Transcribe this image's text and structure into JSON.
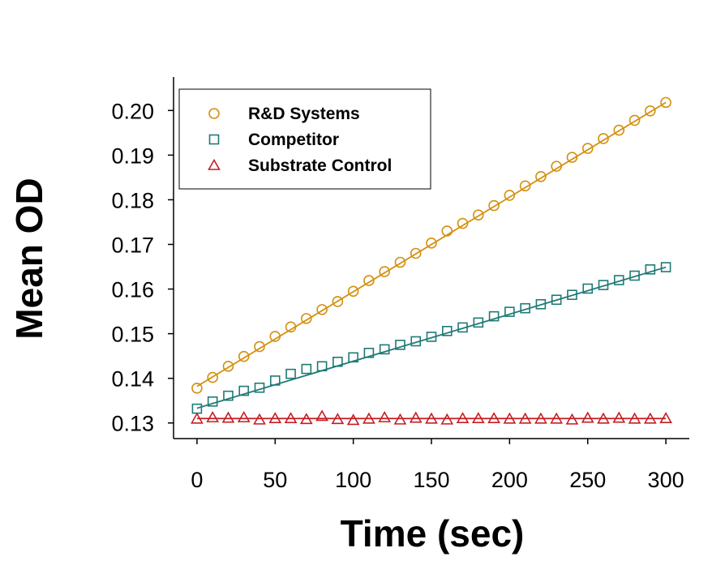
{
  "chart_data": {
    "type": "scatter",
    "xlabel": "Time (sec)",
    "ylabel": "Mean OD",
    "xlim": [
      -15,
      315
    ],
    "ylim": [
      0.1265,
      0.2075
    ],
    "x_ticks": [
      "0",
      "50",
      "100",
      "150",
      "200",
      "250",
      "300"
    ],
    "y_ticks": [
      "0.13",
      "0.14",
      "0.15",
      "0.16",
      "0.17",
      "0.18",
      "0.19",
      "0.20"
    ],
    "grid": false,
    "legend_position": "top-left",
    "x": [
      0,
      10,
      20,
      30,
      40,
      50,
      60,
      70,
      80,
      90,
      100,
      110,
      120,
      130,
      140,
      150,
      160,
      170,
      180,
      190,
      200,
      210,
      220,
      230,
      240,
      250,
      260,
      270,
      280,
      290,
      300
    ],
    "series": [
      {
        "name": "R&D Systems",
        "color": "#D4900F",
        "marker": "circle",
        "values": [
          0.1378,
          0.1402,
          0.1427,
          0.1449,
          0.1471,
          0.1494,
          0.1515,
          0.1534,
          0.1554,
          0.1572,
          0.1595,
          0.1619,
          0.1639,
          0.166,
          0.168,
          0.1703,
          0.173,
          0.1747,
          0.1766,
          0.1787,
          0.181,
          0.1831,
          0.1852,
          0.1875,
          0.1895,
          0.1915,
          0.1937,
          0.1956,
          0.1978,
          0.1999,
          0.2018
        ],
        "fit": [
          0.1382,
          0.2018
        ]
      },
      {
        "name": "Competitor",
        "color": "#1F7A76",
        "marker": "square",
        "values": [
          0.1332,
          0.1348,
          0.1361,
          0.1372,
          0.1379,
          0.1395,
          0.141,
          0.1421,
          0.1427,
          0.1437,
          0.1447,
          0.1457,
          0.1465,
          0.1475,
          0.1483,
          0.1493,
          0.1506,
          0.1514,
          0.1525,
          0.1539,
          0.1549,
          0.1557,
          0.1566,
          0.1576,
          0.1587,
          0.1601,
          0.1609,
          0.162,
          0.163,
          0.1644,
          0.1649
        ],
        "fit": [
          0.1333,
          0.1649
        ]
      },
      {
        "name": "Substrate Control",
        "color": "#C41E24",
        "marker": "triangle",
        "values": [
          0.1309,
          0.1312,
          0.1311,
          0.1312,
          0.1307,
          0.131,
          0.131,
          0.1308,
          0.1315,
          0.1308,
          0.1306,
          0.1309,
          0.1312,
          0.1307,
          0.1311,
          0.1309,
          0.1307,
          0.131,
          0.131,
          0.131,
          0.1309,
          0.1309,
          0.1309,
          0.1309,
          0.1307,
          0.1311,
          0.1309,
          0.1311,
          0.1309,
          0.1309,
          0.131
        ],
        "fit": [
          0.131,
          0.131
        ]
      }
    ]
  }
}
